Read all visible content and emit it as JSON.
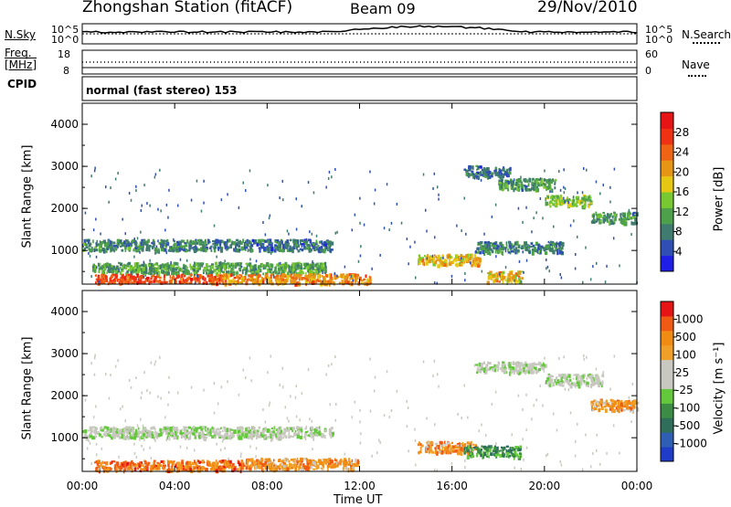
{
  "header": {
    "station": "Zhongshan Station (fitACF)",
    "beam": "Beam 09",
    "date": "29/Nov/2010"
  },
  "strip_nsky": {
    "left_label": "N.Sky",
    "left_ticks": [
      "10^5",
      "10^0"
    ],
    "right_label": "N.Search",
    "right_ticks": [
      "10^5",
      "10^0"
    ]
  },
  "strip_freq": {
    "left_label_1": "Freq.",
    "left_label_2": "[MHz]",
    "left_ticks": [
      "18",
      "8"
    ],
    "right_label": "Nave",
    "right_ticks": [
      "60",
      "0"
    ]
  },
  "strip_cpid": {
    "label": "CPID",
    "text": "normal (fast stereo) 153"
  },
  "chart_data": [
    {
      "type": "heatmap",
      "panel": "power",
      "ylabel": "Slant Range [km]",
      "yticks": [
        "1000",
        "2000",
        "3000",
        "4000"
      ],
      "ylim": [
        200,
        4500
      ],
      "colorbar_label": "Power [dB]",
      "colorbar_ticks": [
        "4",
        "8",
        "12",
        "16",
        "20",
        "24",
        "28"
      ],
      "colorbar_colors": [
        "#1e1ee6",
        "#2f4fb4",
        "#3f7b6e",
        "#4fa04a",
        "#78c832",
        "#e6c814",
        "#e69614",
        "#ee6414",
        "#f03214",
        "#e61414"
      ],
      "features": [
        {
          "start_h": 0.0,
          "end_h": 5.2,
          "range_km": 1150,
          "level": 0.25
        },
        {
          "start_h": 5.2,
          "end_h": 10.8,
          "range_km": 1150,
          "level": 0.2
        },
        {
          "start_h": 0.4,
          "end_h": 10.5,
          "range_km": 600,
          "level": 0.35
        },
        {
          "start_h": 0.5,
          "end_h": 6.0,
          "range_km": 320,
          "level": 0.85
        },
        {
          "start_h": 6.0,
          "end_h": 12.5,
          "range_km": 330,
          "level": 0.7
        },
        {
          "start_h": 14.5,
          "end_h": 17.2,
          "range_km": 800,
          "level": 0.6
        },
        {
          "start_h": 16.5,
          "end_h": 18.5,
          "range_km": 2900,
          "level": 0.2
        },
        {
          "start_h": 18.0,
          "end_h": 20.5,
          "range_km": 2600,
          "level": 0.3
        },
        {
          "start_h": 20.0,
          "end_h": 22.0,
          "range_km": 2200,
          "level": 0.45
        },
        {
          "start_h": 22.0,
          "end_h": 24.0,
          "range_km": 1800,
          "level": 0.3
        },
        {
          "start_h": 17.0,
          "end_h": 20.8,
          "range_km": 1100,
          "level": 0.25
        },
        {
          "start_h": 17.5,
          "end_h": 19.0,
          "range_km": 400,
          "level": 0.6
        }
      ]
    },
    {
      "type": "heatmap",
      "panel": "velocity",
      "ylabel": "Slant Range [km]",
      "yticks": [
        "1000",
        "2000",
        "3000",
        "4000"
      ],
      "ylim": [
        200,
        4500
      ],
      "xlabel": "Time UT",
      "xticks": [
        "00:00",
        "04:00",
        "08:00",
        "12:00",
        "16:00",
        "20:00",
        "00:00"
      ],
      "xlim": [
        0,
        24
      ],
      "colorbar_label": "Velocity [m s⁻¹]",
      "colorbar_ticks": [
        "1000",
        "500",
        "100",
        "25",
        "-25",
        "-100",
        "-500",
        "-1000"
      ],
      "colorbar_colors": [
        "#1e3cc8",
        "#2f5fb4",
        "#2e6e5a",
        "#3c8c46",
        "#64c83c",
        "#c8c8c0",
        "#c8c8c0",
        "#f0a028",
        "#f08c14",
        "#f05a14",
        "#e61414"
      ],
      "features": [
        {
          "start_h": 0.0,
          "end_h": 10.8,
          "range_km": 1150,
          "level": 0.5
        },
        {
          "start_h": 0.5,
          "end_h": 7.0,
          "range_km": 350,
          "level": 0.85
        },
        {
          "start_h": 7.0,
          "end_h": 12.0,
          "range_km": 400,
          "level": 0.78
        },
        {
          "start_h": 14.5,
          "end_h": 17.0,
          "range_km": 800,
          "level": 0.78
        },
        {
          "start_h": 16.5,
          "end_h": 19.0,
          "range_km": 700,
          "level": 0.3
        },
        {
          "start_h": 17.0,
          "end_h": 20.0,
          "range_km": 2700,
          "level": 0.5
        },
        {
          "start_h": 20.0,
          "end_h": 22.5,
          "range_km": 2400,
          "level": 0.5
        },
        {
          "start_h": 22.0,
          "end_h": 24.0,
          "range_km": 1800,
          "level": 0.75
        }
      ]
    }
  ]
}
